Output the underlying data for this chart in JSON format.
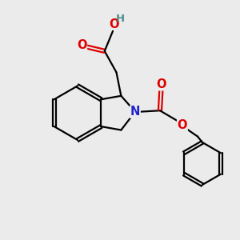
{
  "bg_color": "#ebebeb",
  "bond_color": "#000000",
  "N_color": "#2222cc",
  "O_color": "#dd0000",
  "H_color": "#4a8a8a",
  "line_width": 1.6,
  "font_size": 10.5,
  "xlim": [
    0,
    10
  ],
  "ylim": [
    0,
    10
  ]
}
